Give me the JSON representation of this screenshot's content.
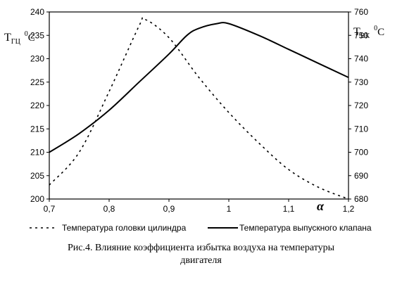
{
  "chart_data": {
    "type": "line",
    "x_axis": {
      "label": "α",
      "range": [
        0.7,
        1.2
      ],
      "ticks": [
        "0,7",
        "0,8",
        "0,9",
        "1",
        "1,1",
        "1,2"
      ],
      "tick_values": [
        0.7,
        0.8,
        0.9,
        1.0,
        1.1,
        1.2
      ]
    },
    "y_axis_left": {
      "label_main": "T",
      "label_sub": "ГЦ",
      "label_sup": "0",
      "label_unit": "C",
      "range": [
        200,
        240
      ],
      "ticks": [
        "200",
        "205",
        "210",
        "215",
        "220",
        "225",
        "230",
        "235",
        "240"
      ],
      "tick_values": [
        200,
        205,
        210,
        215,
        220,
        225,
        230,
        235,
        240
      ]
    },
    "y_axis_right": {
      "label_main": "T",
      "label_sub": "ВК",
      "label_sup": "0",
      "label_unit": "C",
      "range": [
        680,
        760
      ],
      "ticks": [
        "680",
        "690",
        "700",
        "710",
        "720",
        "730",
        "740",
        "750",
        "760"
      ],
      "tick_values": [
        680,
        690,
        700,
        710,
        720,
        730,
        740,
        750,
        760
      ]
    },
    "grid": false,
    "legend_position": "bottom",
    "series": [
      {
        "name": "Температура головки цилиндра",
        "axis": "left",
        "style": "dashed",
        "color": "#000000",
        "x": [
          0.7,
          0.75,
          0.8,
          0.85,
          0.86,
          0.9,
          0.95,
          1.0,
          1.05,
          1.1,
          1.15,
          1.2
        ],
        "y": [
          203,
          210,
          223,
          237,
          238.4,
          234.5,
          226,
          218.5,
          212,
          206.3,
          202.5,
          200
        ]
      },
      {
        "name": "Температура выпускного клапана",
        "axis": "right",
        "style": "solid",
        "color": "#000000",
        "x": [
          0.7,
          0.75,
          0.8,
          0.85,
          0.9,
          0.93,
          0.95,
          0.98,
          1.0,
          1.05,
          1.1,
          1.15,
          1.2
        ],
        "y": [
          700,
          708,
          718,
          730,
          742,
          750,
          753,
          755,
          755,
          750,
          744,
          738,
          732
        ]
      }
    ]
  },
  "caption": {
    "line1": "Рис.4. Влияние коэффициента избытка воздуха на температуры",
    "line2": "двигателя"
  }
}
